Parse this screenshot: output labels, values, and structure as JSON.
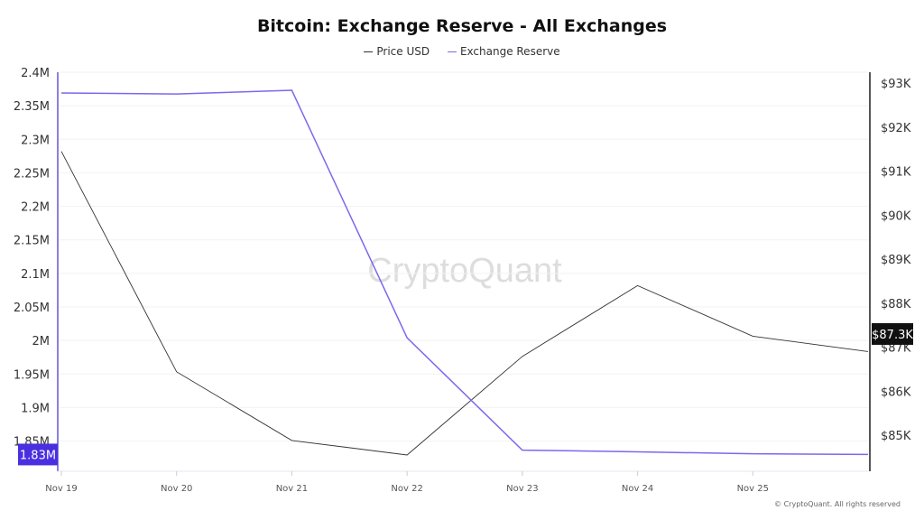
{
  "chart_data": {
    "type": "line",
    "title": "Bitcoin: Exchange Reserve - All Exchanges",
    "x": [
      "Nov 19",
      "Nov 20",
      "Nov 21",
      "Nov 22",
      "Nov 23",
      "Nov 24",
      "Nov 25",
      ""
    ],
    "xticks": [
      "Nov 19",
      "Nov 20",
      "Nov 21",
      "Nov 22",
      "Nov 23",
      "Nov 24",
      "Nov 25"
    ],
    "series": [
      {
        "name": "Price USD",
        "axis": "right",
        "color": "#333333",
        "values": [
          91450,
          86440,
          84880,
          84550,
          86790,
          88400,
          87250,
          86900
        ]
      },
      {
        "name": "Exchange Reserve",
        "axis": "left",
        "color": "#7b68ee",
        "values": [
          2369000,
          2367600,
          2373000,
          2004000,
          1836500,
          1834000,
          1831000,
          1830000
        ]
      }
    ],
    "left_axis": {
      "range": [
        1805000,
        2400000
      ],
      "ticks": [
        2400000,
        2350000,
        2300000,
        2250000,
        2200000,
        2150000,
        2100000,
        2050000,
        2000000,
        1950000,
        1900000,
        1850000
      ],
      "tick_labels": [
        "2.4M",
        "2.35M",
        "2.3M",
        "2.25M",
        "2.2M",
        "2.15M",
        "2.1M",
        "2.05M",
        "2M",
        "1.95M",
        "1.9M",
        "1.85M"
      ],
      "current_label": "1.83M",
      "current_value": 1830000,
      "current_color": "#4a2fe0"
    },
    "right_axis": {
      "range": [
        84180,
        93250
      ],
      "ticks": [
        93000,
        92000,
        91000,
        90000,
        89000,
        88000,
        87000,
        86000,
        85000
      ],
      "tick_labels": [
        "$93K",
        "$92K",
        "$91K",
        "$90K",
        "$89K",
        "$88K",
        "$87K",
        "$86K",
        "$85K"
      ],
      "current_label": "$87.3K",
      "current_value": 87300,
      "current_color": "#111111"
    },
    "grid": true,
    "legend_position": "top-center",
    "watermark": "CryptoQuant"
  },
  "footer": {
    "copyright": "© CryptoQuant. All rights reserved"
  }
}
